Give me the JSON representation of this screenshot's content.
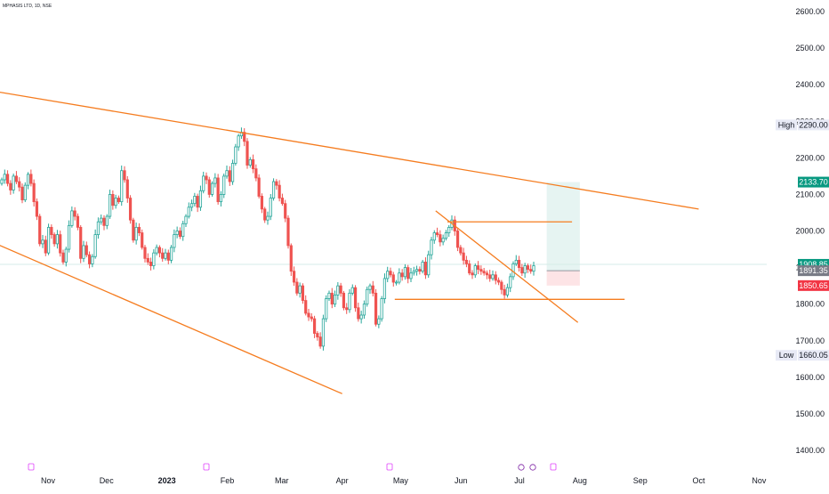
{
  "header": {
    "symbol_title": "MPHASIS LTD, 1D, NSE"
  },
  "colors": {
    "up": "#26a69a",
    "down": "#ef5350",
    "trendline": "#f57c1f",
    "grid_text": "#131722",
    "last_price": "#089981",
    "sell_level": "#f23645",
    "current_price": "#787b86",
    "target_zone": "#e6f4f2",
    "stop_zone": "#fde4e6"
  },
  "chart_data": {
    "type": "candlestick",
    "title": "",
    "y_axis": {
      "min": 1360,
      "max": 2640,
      "ticks": [
        1400,
        1500,
        1600,
        1700,
        1800,
        1900,
        2000,
        2100,
        2200,
        2300,
        2400,
        2500,
        2600
      ],
      "tick_labels": [
        "1400.00",
        "1500.00",
        "1600.00",
        "1700.00",
        "1800.00",
        "1900.00",
        "2000.00",
        "2100.00",
        "2200.00",
        "2300.00",
        "2400.00",
        "2500.00",
        "2600.00"
      ]
    },
    "x_axis": {
      "labels": [
        {
          "text": "Nov",
          "date": "2022-11-01",
          "bold": false
        },
        {
          "text": "Dec",
          "date": "2022-12-01",
          "bold": false
        },
        {
          "text": "2023",
          "date": "2023-01-01",
          "bold": true
        },
        {
          "text": "Feb",
          "date": "2023-02-01",
          "bold": false
        },
        {
          "text": "Mar",
          "date": "2023-03-01",
          "bold": false
        },
        {
          "text": "Apr",
          "date": "2023-04-01",
          "bold": false
        },
        {
          "text": "May",
          "date": "2023-05-01",
          "bold": false
        },
        {
          "text": "Jun",
          "date": "2023-06-01",
          "bold": false
        },
        {
          "text": "Jul",
          "date": "2023-07-01",
          "bold": false
        },
        {
          "text": "Aug",
          "date": "2023-08-01",
          "bold": false
        },
        {
          "text": "Sep",
          "date": "2023-09-01",
          "bold": false
        },
        {
          "text": "Oct",
          "date": "2023-10-01",
          "bold": false
        },
        {
          "text": "Nov",
          "date": "2023-11-01",
          "bold": false
        }
      ]
    },
    "candles_close": [
      2140,
      2155,
      2130,
      2112,
      2150,
      2135,
      2120,
      2085,
      2125,
      2155,
      2130,
      2080,
      2040,
      1965,
      1975,
      1940,
      2010,
      1990,
      1965,
      1990,
      1940,
      1915,
      1950,
      2015,
      2055,
      2040,
      2010,
      1925,
      1960,
      1935,
      1910,
      1930,
      1990,
      2025,
      2035,
      2015,
      2040,
      2100,
      2070,
      2090,
      2080,
      2165,
      2140,
      2090,
      2030,
      1975,
      2010,
      1995,
      1955,
      1925,
      1915,
      1905,
      1940,
      1955,
      1940,
      1925,
      1940,
      1920,
      1955,
      1990,
      2000,
      1985,
      2020,
      2040,
      2065,
      2075,
      2095,
      2065,
      2110,
      2150,
      2140,
      2100,
      2130,
      2145,
      2080,
      2100,
      2150,
      2165,
      2135,
      2185,
      2230,
      2260,
      2270,
      2245,
      2180,
      2195,
      2170,
      2145,
      2095,
      2060,
      2030,
      2040,
      2090,
      2135,
      2125,
      2090,
      2075,
      2035,
      1960,
      1890,
      1860,
      1830,
      1850,
      1810,
      1775,
      1765,
      1760,
      1720,
      1710,
      1685,
      1760,
      1815,
      1830,
      1800,
      1825,
      1850,
      1830,
      1790,
      1785,
      1830,
      1845,
      1790,
      1760,
      1770,
      1800,
      1840,
      1850,
      1830,
      1745,
      1760,
      1815,
      1870,
      1890,
      1880,
      1860,
      1860,
      1885,
      1875,
      1900,
      1870,
      1885,
      1890,
      1895,
      1890,
      1915,
      1880,
      1935,
      1975,
      1995,
      1990,
      1970,
      1980,
      1995,
      2010,
      2030,
      2000,
      1955,
      1940,
      1920,
      1910,
      1885,
      1880,
      1905,
      1895,
      1890,
      1885,
      1880,
      1870,
      1880,
      1865,
      1860,
      1840,
      1825,
      1845,
      1875,
      1910,
      1920,
      1900,
      1885,
      1905,
      1895,
      1890,
      1905
    ],
    "channel_upper": [
      {
        "date": "2022-10-01",
        "value": 2385
      },
      {
        "date": "2023-10-01",
        "value": 2060
      }
    ],
    "channel_lower": [
      {
        "date": "2022-10-01",
        "value": 1975
      },
      {
        "date": "2023-04-01",
        "value": 1555
      }
    ],
    "resistance_line": {
      "date_start": "2023-05-25",
      "date_end": "2023-07-28",
      "value": 2025
    },
    "support_line": {
      "date_start": "2023-04-28",
      "date_end": "2023-08-24",
      "value": 1813
    },
    "descending_line": [
      {
        "date": "2023-05-19",
        "value": 2055
      },
      {
        "date": "2023-07-31",
        "value": 1750
      }
    ],
    "position": {
      "entry": 1891.35,
      "target": 2133.7,
      "stop": 1850.65,
      "date_start": "2023-07-15",
      "date_end": "2023-08-01"
    },
    "price_tags": {
      "high_label": "High",
      "high_value": "2290.00",
      "low_label": "Low",
      "low_value": "1660.05",
      "target_value": "2133.70",
      "last_value": "1908.85",
      "entry_value": "1891.35",
      "stop_value": "1850.65"
    },
    "grid": false,
    "legend": "none"
  }
}
